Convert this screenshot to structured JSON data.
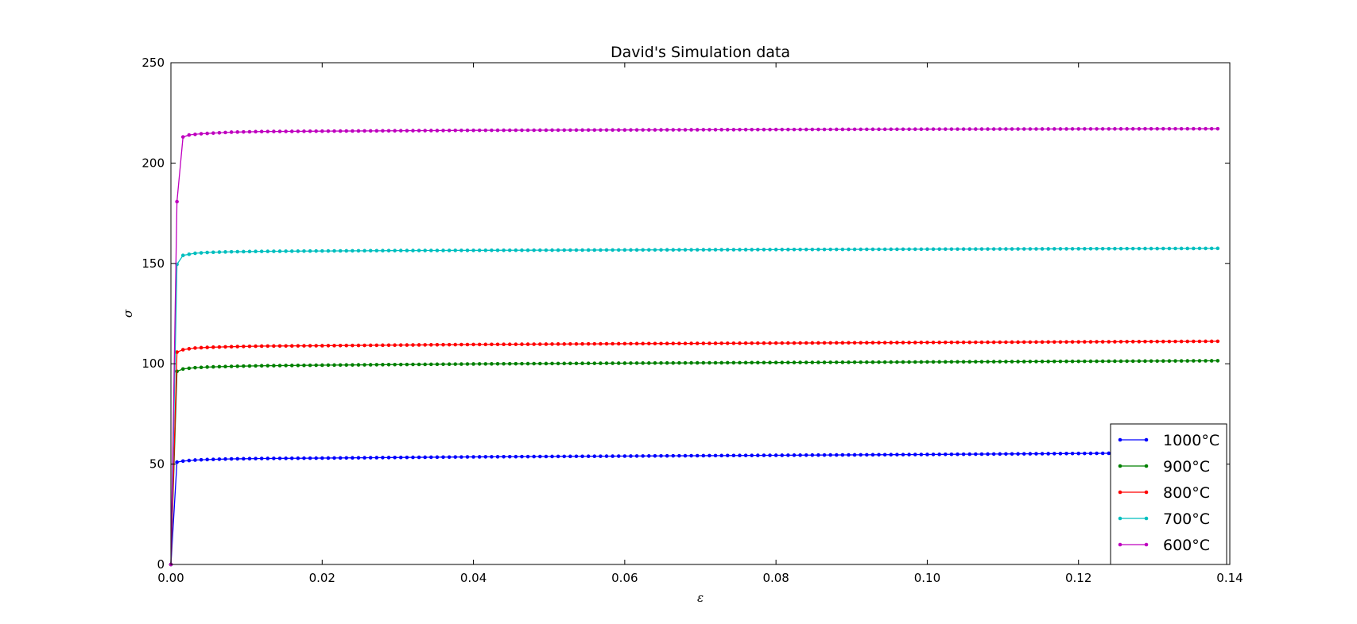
{
  "chart_data": {
    "type": "line",
    "title": "David's Simulation data",
    "xlabel": "ε",
    "ylabel": "σ",
    "xlim": [
      0.0,
      0.14
    ],
    "ylim": [
      0,
      250
    ],
    "xticks": [
      0.0,
      0.02,
      0.04,
      0.06,
      0.08,
      0.1,
      0.12,
      0.14
    ],
    "xtick_labels": [
      "0.00",
      "0.02",
      "0.04",
      "0.06",
      "0.08",
      "0.10",
      "0.12",
      "0.14"
    ],
    "yticks": [
      0,
      50,
      100,
      150,
      200,
      250
    ],
    "ytick_labels": [
      "0",
      "50",
      "100",
      "150",
      "200",
      "250"
    ],
    "grid": false,
    "legend_position": "bottom-right",
    "marker": "dot",
    "series": [
      {
        "name": "1000°C",
        "color": "#0000ff",
        "x": [
          0.0,
          0.0008,
          0.0016,
          0.003,
          0.005,
          0.008,
          0.012,
          0.02,
          0.03,
          0.04,
          0.06,
          0.08,
          0.1,
          0.12,
          0.139
        ],
        "y": [
          0,
          51.0,
          51.5,
          52.0,
          52.3,
          52.6,
          52.8,
          53.0,
          53.3,
          53.6,
          54.0,
          54.4,
          54.8,
          55.3,
          55.8
        ]
      },
      {
        "name": "900°C",
        "color": "#008000",
        "x": [
          0.0,
          0.0008,
          0.0016,
          0.003,
          0.005,
          0.008,
          0.012,
          0.02,
          0.03,
          0.04,
          0.06,
          0.08,
          0.1,
          0.12,
          0.139
        ],
        "y": [
          0,
          96.2,
          97.4,
          98.0,
          98.4,
          98.7,
          99.0,
          99.3,
          99.6,
          99.9,
          100.3,
          100.6,
          100.9,
          101.2,
          101.5
        ]
      },
      {
        "name": "800°C",
        "color": "#ff0000",
        "x": [
          0.0,
          0.0008,
          0.0016,
          0.003,
          0.005,
          0.008,
          0.012,
          0.02,
          0.03,
          0.04,
          0.06,
          0.08,
          0.1,
          0.12,
          0.139
        ],
        "y": [
          0,
          105.8,
          107.0,
          107.8,
          108.2,
          108.5,
          108.8,
          109.0,
          109.3,
          109.6,
          110.0,
          110.3,
          110.6,
          110.9,
          111.2
        ]
      },
      {
        "name": "700°C",
        "color": "#00bfbf",
        "x": [
          0.0,
          0.0008,
          0.0016,
          0.003,
          0.005,
          0.008,
          0.012,
          0.02,
          0.03,
          0.04,
          0.06,
          0.08,
          0.1,
          0.12,
          0.139
        ],
        "y": [
          0,
          149.5,
          154.0,
          155.0,
          155.5,
          155.8,
          156.0,
          156.2,
          156.4,
          156.5,
          156.7,
          156.9,
          157.1,
          157.3,
          157.5
        ]
      },
      {
        "name": "600°C",
        "color": "#bf00bf",
        "x": [
          0.0,
          0.0008,
          0.0016,
          0.0024,
          0.004,
          0.006,
          0.008,
          0.012,
          0.02,
          0.03,
          0.04,
          0.06,
          0.08,
          0.1,
          0.12,
          0.139
        ],
        "y": [
          0,
          180.8,
          213.0,
          214.0,
          214.6,
          215.0,
          215.4,
          215.7,
          215.9,
          216.1,
          216.3,
          216.5,
          216.7,
          216.9,
          217.0,
          217.1
        ]
      }
    ]
  }
}
